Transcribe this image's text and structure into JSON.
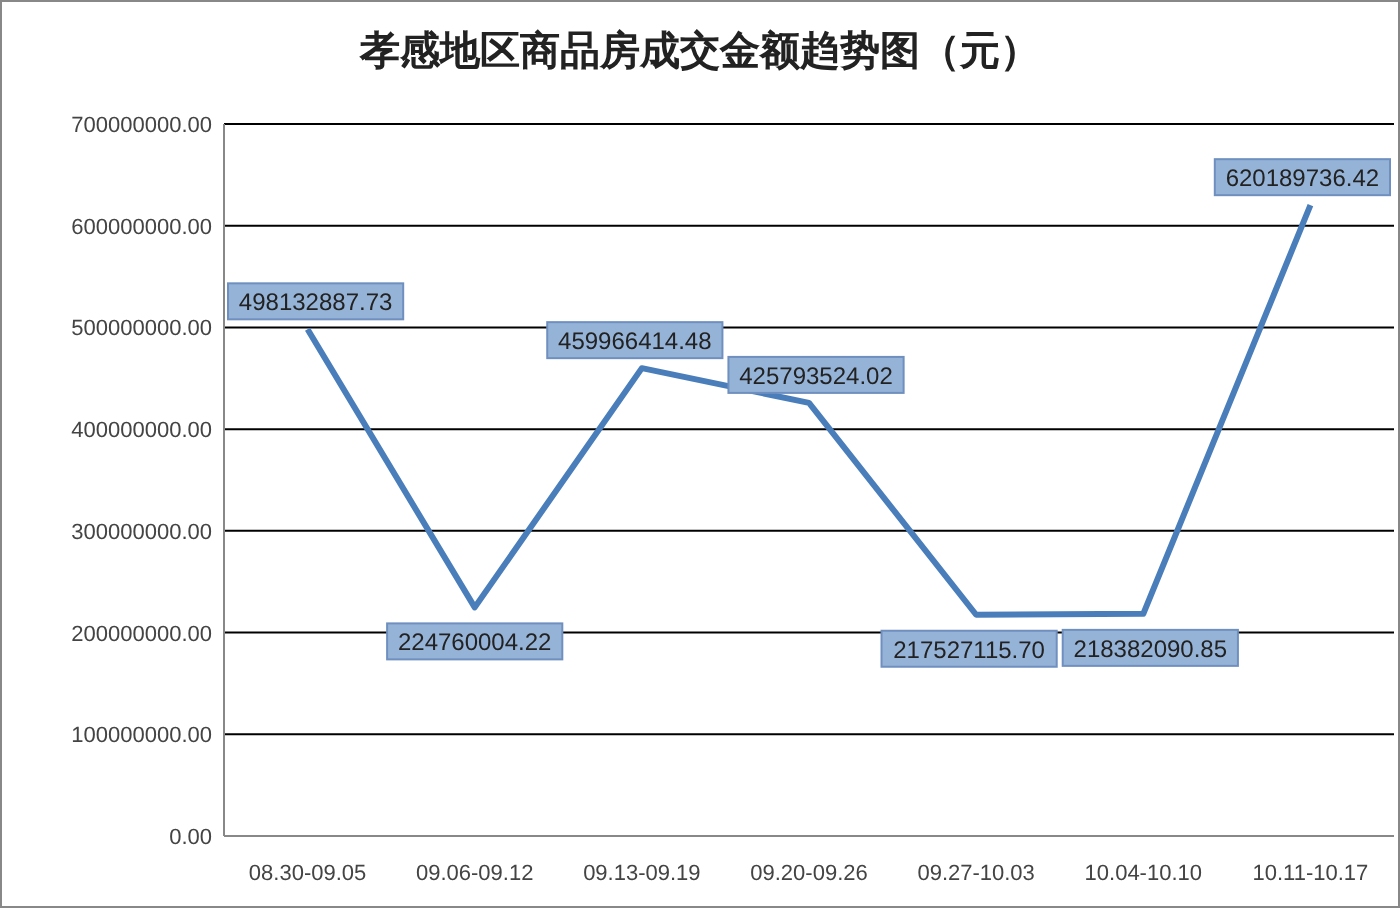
{
  "chart_data": {
    "type": "line",
    "title": "孝感地区商品房成交金额趋势图（元）",
    "categories": [
      "08.30-09.05",
      "09.06-09.12",
      "09.13-09.19",
      "09.20-09.26",
      "09.27-10.03",
      "10.04-10.10",
      "10.11-10.17"
    ],
    "series": [
      {
        "color": "#4a7ebb",
        "values": [
          498132887.73,
          224760004.22,
          459966414.48,
          425793524.02,
          217527115.7,
          218382090.85,
          620189736.42
        ],
        "value_labels": [
          "498132887.73",
          "224760004.22",
          "459966414.48",
          "425793524.02",
          "217527115.70",
          "218382090.85",
          "620189736.42"
        ]
      }
    ],
    "ylim": [
      0,
      700000000
    ],
    "yticks": [
      {
        "value": 0,
        "label": "0.00"
      },
      {
        "value": 100000000,
        "label": "100000000.00"
      },
      {
        "value": 200000000,
        "label": "200000000.00"
      },
      {
        "value": 300000000,
        "label": "300000000.00"
      },
      {
        "value": 400000000,
        "label": "400000000.00"
      },
      {
        "value": 500000000,
        "label": "500000000.00"
      },
      {
        "value": 600000000,
        "label": "600000000.00"
      },
      {
        "value": 700000000,
        "label": "700000000.00"
      }
    ],
    "grid": "y",
    "marker": "none",
    "line_style": "solid"
  }
}
